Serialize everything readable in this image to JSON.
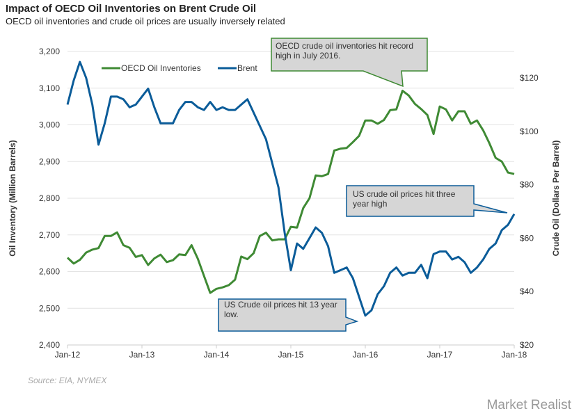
{
  "title": "Impact of OECD Oil Inventories on Brent Crude Oil",
  "subtitle": "OECD oil inventories and crude oil prices are usually inversely related",
  "source": "Source: EIA, NYMEX",
  "logo": "Market Realist",
  "chart_data": {
    "type": "line",
    "ylabel": "Oil Inventory (Million Barrels)",
    "y2label": "Crude Oil (Dollars Per Barrel)",
    "ylim": [
      2400,
      3200
    ],
    "y2lim": [
      20,
      130
    ],
    "yticks": [
      "2,400",
      "2,500",
      "2,600",
      "2,700",
      "2,800",
      "2,900",
      "3,000",
      "3,100",
      "3,200"
    ],
    "y2ticks": [
      "$20",
      "$40",
      "$60",
      "$80",
      "$100",
      "$120"
    ],
    "xticks": [
      "Jan-12",
      "Jan-13",
      "Jan-14",
      "Jan-15",
      "Jan-16",
      "Jan-17",
      "Jan-18"
    ],
    "grid": true,
    "legend": "top-left",
    "colors": {
      "OECD Oil Inventories": "#3f8a34",
      "Brent": "#0b5c99"
    },
    "series": [
      {
        "name": "OECD Oil Inventories",
        "axis": "left",
        "start": "Jan-12",
        "frequency": "monthly",
        "values": [
          2638,
          2622,
          2632,
          2652,
          2660,
          2664,
          2697,
          2697,
          2707,
          2672,
          2665,
          2640,
          2645,
          2618,
          2636,
          2646,
          2626,
          2631,
          2647,
          2645,
          2672,
          2635,
          2588,
          2542,
          2553,
          2557,
          2563,
          2578,
          2641,
          2634,
          2650,
          2697,
          2706,
          2685,
          2688,
          2688,
          2722,
          2720,
          2773,
          2800,
          2862,
          2860,
          2866,
          2930,
          2935,
          2937,
          2953,
          2970,
          3012,
          3012,
          3003,
          3013,
          3040,
          3042,
          3093,
          3080,
          3057,
          3043,
          3027,
          2975,
          3050,
          3042,
          3012,
          3037,
          3037,
          3003,
          3012,
          2985,
          2950,
          2910,
          2900,
          2870,
          2866
        ]
      },
      {
        "name": "Brent",
        "axis": "right",
        "start": "Jan-12",
        "frequency": "monthly",
        "values": [
          110,
          119,
          126,
          120,
          110,
          95,
          103,
          113,
          113,
          112,
          109,
          110,
          113,
          116,
          109,
          103,
          103,
          103,
          108,
          111,
          111,
          109,
          108,
          111,
          108,
          109,
          108,
          108,
          110,
          112,
          107,
          102,
          97,
          88,
          79,
          62,
          48,
          58,
          56,
          60,
          64,
          62,
          57,
          47,
          48,
          49,
          45,
          38,
          31,
          33,
          39,
          42,
          47,
          49,
          46,
          47,
          47,
          50,
          45,
          54,
          55,
          55,
          52,
          53,
          51,
          47,
          49,
          52,
          56,
          58,
          63,
          65,
          69
        ]
      }
    ],
    "annotations": [
      {
        "text": "OECD crude oil inventories hit record high in July 2016.",
        "target": "Jul-16"
      },
      {
        "text": "US crude oil prices  hit three year high",
        "target": "Jan-18"
      },
      {
        "text": "US Crude oil prices hit 13 year low.",
        "target": "Jan-16"
      }
    ]
  }
}
